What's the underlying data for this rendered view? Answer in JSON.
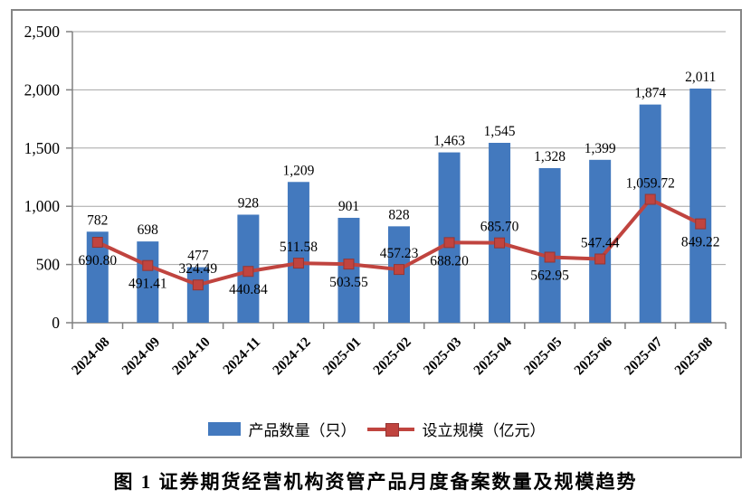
{
  "chart_data": {
    "type": "bar+line",
    "categories": [
      "2024-08",
      "2024-09",
      "2024-10",
      "2024-11",
      "2024-12",
      "2025-01",
      "2025-02",
      "2025-03",
      "2025-04",
      "2025-05",
      "2025-06",
      "2025-07",
      "2025-08"
    ],
    "series": [
      {
        "name": "产品数量（只）",
        "type": "bar",
        "color": "#4379BE",
        "values": [
          782,
          698,
          477,
          928,
          1209,
          901,
          828,
          1463,
          1545,
          1328,
          1399,
          1874,
          2011
        ]
      },
      {
        "name": "设立规模（亿元）",
        "type": "line",
        "color": "#C0443F",
        "marker_border": "#943634",
        "values": [
          690.8,
          491.41,
          324.49,
          440.84,
          511.58,
          503.55,
          457.23,
          688.2,
          685.7,
          562.95,
          547.44,
          1059.72,
          849.22
        ],
        "label_positions": [
          "below",
          "below",
          "above",
          "below",
          "above",
          "below",
          "above",
          "below",
          "above",
          "below",
          "above",
          "above",
          "below"
        ]
      }
    ],
    "title": "",
    "xlabel": "",
    "ylabel": "",
    "ylim": [
      0,
      2500
    ],
    "ytick_interval": 500,
    "ytick_labels": [
      "0",
      "500",
      "1,000",
      "1,500",
      "2,000",
      "2,500"
    ],
    "grid": true,
    "gridline_color": "#A6A6A6",
    "axis_color": "#808080",
    "legend_position": "bottom"
  },
  "legend": {
    "items": [
      {
        "label": "产品数量（只）",
        "marker": "bar-swatch",
        "color": "#4379BE"
      },
      {
        "label": "设立规模（亿元）",
        "marker": "line-square",
        "color": "#C0443F"
      }
    ]
  },
  "caption": {
    "text": "图 1  证券期货经营机构资管产品月度备案数量及规模趋势"
  }
}
